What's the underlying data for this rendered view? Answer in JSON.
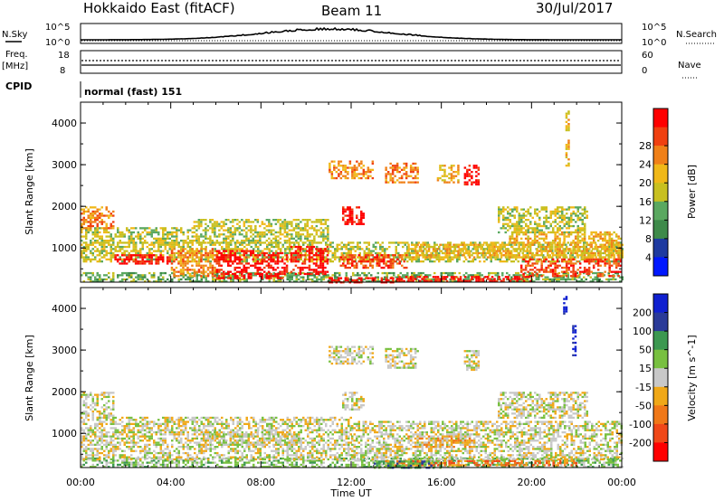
{
  "header": {
    "title": "Hokkaido East (fitACF)",
    "beam": "Beam 11",
    "date": "30/Jul/2017"
  },
  "params": {
    "nsky_label": "N.Sky",
    "nsky_ticks": [
      "10^5",
      "10^0"
    ],
    "nsearch_label": "N.Search",
    "nsearch_ticks": [
      "10^5",
      "10^0"
    ],
    "freq_label_1": "Freq.",
    "freq_label_2": "[MHz]",
    "freq_ticks": [
      "18",
      "8"
    ],
    "nave_label": "Nave",
    "nave_ticks": [
      "60",
      "0"
    ],
    "cpid_label": "CPID",
    "cpid_text": "normal (fast) 151"
  },
  "colors": {
    "power": [
      "#0018ff",
      "#1e3aa0",
      "#3e8a4a",
      "#5aa860",
      "#c8c020",
      "#f0b818",
      "#f08018",
      "#f04010",
      "#ff0000"
    ],
    "velocity": [
      "#ff0000",
      "#f04818",
      "#f07818",
      "#f0a818",
      "#c8c8c8",
      "#78c040",
      "#3c9850",
      "#2a3a98",
      "#1020d0"
    ]
  },
  "chart_data": [
    {
      "type": "heatmap",
      "name_label": "Power",
      "ylabel": "Slant Range [km]",
      "colorbar_label": "Power [dB]",
      "colorbar_ticks": [
        "4",
        "8",
        "12",
        "16",
        "20",
        "24",
        "28"
      ],
      "ylim": [
        180,
        4500
      ],
      "yticks": [
        "1000",
        "2000",
        "3000",
        "4000"
      ],
      "xticks": [
        "00:00",
        "04:00",
        "08:00",
        "12:00",
        "16:00",
        "20:00",
        "00:00"
      ],
      "regions": [
        {
          "t0": 0.0,
          "t1": 24.0,
          "r0": 180,
          "r1": 420,
          "level": 3
        },
        {
          "t0": 0.0,
          "t1": 24.0,
          "r0": 700,
          "r1": 1150,
          "level": 4
        },
        {
          "t0": 0.0,
          "t1": 5.0,
          "r0": 1150,
          "r1": 1500,
          "level": 4
        },
        {
          "t0": 0.0,
          "t1": 1.5,
          "r0": 1500,
          "r1": 2000,
          "level": 6
        },
        {
          "t0": 1.5,
          "t1": 4.0,
          "r0": 650,
          "r1": 850,
          "level": 8
        },
        {
          "t0": 4.0,
          "t1": 6.0,
          "r0": 350,
          "r1": 1000,
          "level": 6
        },
        {
          "t0": 6.0,
          "t1": 8.3,
          "r0": 300,
          "r1": 950,
          "level": 8
        },
        {
          "t0": 8.3,
          "t1": 9.2,
          "r0": 300,
          "r1": 900,
          "level": 8
        },
        {
          "t0": 9.3,
          "t1": 11.0,
          "r0": 400,
          "r1": 1050,
          "level": 8
        },
        {
          "t0": 11.0,
          "t1": 14.0,
          "r0": 200,
          "r1": 300,
          "level": 8
        },
        {
          "t0": 11.5,
          "t1": 14.5,
          "r0": 550,
          "r1": 850,
          "level": 7
        },
        {
          "t0": 14.0,
          "t1": 20.0,
          "r0": 230,
          "r1": 330,
          "level": 8
        },
        {
          "t0": 19.5,
          "t1": 24.0,
          "r0": 350,
          "r1": 750,
          "level": 7
        },
        {
          "t0": 14.5,
          "t1": 19.0,
          "r0": 800,
          "r1": 1100,
          "level": 5
        },
        {
          "t0": 19.0,
          "t1": 24.0,
          "r0": 800,
          "r1": 1400,
          "level": 5
        },
        {
          "t0": 5.0,
          "t1": 11.0,
          "r0": 1150,
          "r1": 1700,
          "level": 4
        },
        {
          "t0": 11.6,
          "t1": 12.6,
          "r0": 1600,
          "r1": 2000,
          "level": 8
        },
        {
          "t0": 11.0,
          "t1": 13.0,
          "r0": 2700,
          "r1": 3100,
          "level": 6
        },
        {
          "t0": 13.5,
          "t1": 15.0,
          "r0": 2600,
          "r1": 3050,
          "level": 6
        },
        {
          "t0": 15.8,
          "t1": 16.8,
          "r0": 2600,
          "r1": 3000,
          "level": 5
        },
        {
          "t0": 17.0,
          "t1": 17.7,
          "r0": 2550,
          "r1": 3000,
          "level": 8
        },
        {
          "t0": 18.5,
          "t1": 22.5,
          "r0": 1400,
          "r1": 2000,
          "level": 4
        },
        {
          "t0": 21.5,
          "t1": 21.7,
          "r0": 3000,
          "r1": 4300,
          "level": 5
        }
      ]
    },
    {
      "type": "heatmap",
      "name_label": "Velocity",
      "ylabel": "Slant Range [km]",
      "colorbar_label": "Velocity [m s^-1]",
      "colorbar_ticks": [
        "200",
        "100",
        "50",
        "15",
        "-15",
        "-50",
        "-100",
        "-200"
      ],
      "ylim": [
        180,
        4500
      ],
      "yticks": [
        "1000",
        "2000",
        "3000",
        "4000"
      ],
      "xticks": [
        "00:00",
        "04:00",
        "08:00",
        "12:00",
        "16:00",
        "20:00",
        "00:00"
      ],
      "xlabel": "Time UT",
      "regions": [
        {
          "t0": 0.0,
          "t1": 24.0,
          "r0": 180,
          "r1": 420,
          "level": 5
        },
        {
          "t0": 0.0,
          "t1": 12.0,
          "r0": 400,
          "r1": 1400,
          "level": 4
        },
        {
          "t0": 0.0,
          "t1": 1.5,
          "r0": 1400,
          "r1": 2000,
          "level": 4
        },
        {
          "t0": 12.0,
          "t1": 24.0,
          "r0": 400,
          "r1": 1300,
          "level": 4
        },
        {
          "t0": 5.5,
          "t1": 9.5,
          "r0": 750,
          "r1": 1050,
          "level": 4
        },
        {
          "t0": 13.5,
          "t1": 22.0,
          "r0": 220,
          "r1": 360,
          "level": 2
        },
        {
          "t0": 14.5,
          "t1": 17.5,
          "r0": 700,
          "r1": 950,
          "level": 3
        },
        {
          "t0": 13.0,
          "t1": 16.0,
          "r0": 200,
          "r1": 350,
          "level": 6
        },
        {
          "t0": 11.6,
          "t1": 12.6,
          "r0": 1600,
          "r1": 2000,
          "level": 4
        },
        {
          "t0": 11.0,
          "t1": 13.0,
          "r0": 2700,
          "r1": 3100,
          "level": 4
        },
        {
          "t0": 13.5,
          "t1": 15.0,
          "r0": 2600,
          "r1": 3050,
          "level": 4
        },
        {
          "t0": 17.0,
          "t1": 17.7,
          "r0": 2550,
          "r1": 3000,
          "level": 4
        },
        {
          "t0": 18.5,
          "t1": 22.5,
          "r0": 1400,
          "r1": 2000,
          "level": 4
        },
        {
          "t0": 21.4,
          "t1": 21.6,
          "r0": 3900,
          "r1": 4300,
          "level": 8
        },
        {
          "t0": 21.8,
          "t1": 22.0,
          "r0": 2900,
          "r1": 3600,
          "level": 8
        }
      ]
    }
  ]
}
